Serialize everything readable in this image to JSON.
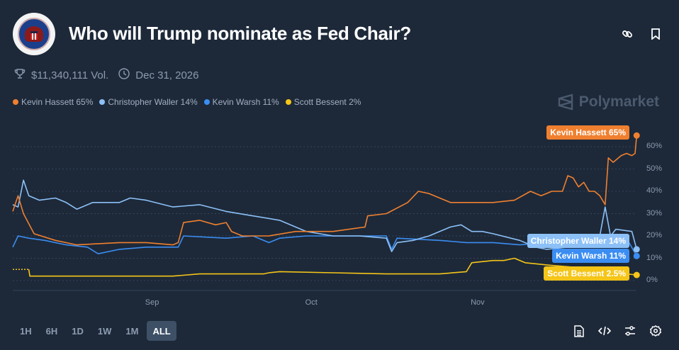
{
  "header": {
    "title": "Who will Trump nominate as Fed Chair?",
    "volume": "$11,340,111 Vol.",
    "end_date": "Dec 31, 2026"
  },
  "brand": "Polymarket",
  "legend": [
    {
      "label": "Kevin Hassett 65%",
      "color": "#f0802f"
    },
    {
      "label": "Christopher Waller 14%",
      "color": "#8cc0f7"
    },
    {
      "label": "Kevin Warsh 11%",
      "color": "#3b8df2"
    },
    {
      "label": "Scott Bessent 2%",
      "color": "#f5c518"
    }
  ],
  "time_ranges": [
    "1H",
    "6H",
    "1D",
    "1W",
    "1M",
    "ALL"
  ],
  "active_range": "ALL",
  "chart_data": {
    "type": "line",
    "x_unit": "days since start (~Aug 5)",
    "xticks": [
      {
        "label": "Sep",
        "day": 26
      },
      {
        "label": "Oct",
        "day": 56
      },
      {
        "label": "Nov",
        "day": 87
      }
    ],
    "yticks": [
      "0%",
      "10%",
      "20%",
      "30%",
      "40%",
      "50%",
      "60%"
    ],
    "ylim": [
      0,
      65
    ],
    "series": [
      {
        "name": "Kevin Hassett",
        "end_label": "Kevin Hassett 65%",
        "color": "#f0802f",
        "points": [
          [
            0,
            31
          ],
          [
            1,
            38
          ],
          [
            2,
            30
          ],
          [
            4,
            21
          ],
          [
            8,
            18
          ],
          [
            12,
            16
          ],
          [
            20,
            17
          ],
          [
            25,
            17
          ],
          [
            30,
            16
          ],
          [
            31,
            17
          ],
          [
            32,
            26
          ],
          [
            35,
            27
          ],
          [
            38,
            25
          ],
          [
            40,
            26
          ],
          [
            41,
            22
          ],
          [
            43,
            20
          ],
          [
            48,
            20
          ],
          [
            53,
            22
          ],
          [
            60,
            22
          ],
          [
            66,
            24
          ],
          [
            66.5,
            29
          ],
          [
            70,
            30
          ],
          [
            74,
            35
          ],
          [
            76,
            40
          ],
          [
            78,
            39
          ],
          [
            82,
            35
          ],
          [
            86,
            35
          ],
          [
            90,
            35
          ],
          [
            94,
            36
          ],
          [
            97,
            40
          ],
          [
            99,
            38
          ],
          [
            101,
            40
          ],
          [
            103,
            40
          ],
          [
            104,
            47
          ],
          [
            105,
            46
          ],
          [
            106,
            42
          ],
          [
            107,
            44
          ],
          [
            108,
            40
          ],
          [
            109,
            40
          ],
          [
            110,
            38
          ],
          [
            111,
            34
          ],
          [
            111.6,
            55
          ],
          [
            112.5,
            53
          ],
          [
            114,
            56
          ],
          [
            115,
            57
          ],
          [
            116,
            56
          ],
          [
            116.6,
            57
          ],
          [
            116.9,
            65
          ]
        ]
      },
      {
        "name": "Christopher Waller",
        "end_label": "Christopher Waller 14%",
        "color": "#8cc0f7",
        "points": [
          [
            0,
            34
          ],
          [
            1,
            33
          ],
          [
            2,
            45
          ],
          [
            3,
            38
          ],
          [
            5,
            36
          ],
          [
            8,
            37
          ],
          [
            10,
            35
          ],
          [
            12,
            32
          ],
          [
            15,
            35
          ],
          [
            20,
            35
          ],
          [
            22,
            37
          ],
          [
            25,
            36
          ],
          [
            30,
            33
          ],
          [
            35,
            34
          ],
          [
            40,
            31
          ],
          [
            45,
            29
          ],
          [
            50,
            27
          ],
          [
            55,
            22
          ],
          [
            60,
            20
          ],
          [
            65,
            20
          ],
          [
            70,
            19
          ],
          [
            71,
            13
          ],
          [
            72,
            17
          ],
          [
            75,
            18
          ],
          [
            78,
            20
          ],
          [
            82,
            24
          ],
          [
            84,
            25
          ],
          [
            86,
            22
          ],
          [
            88,
            22
          ],
          [
            90,
            21
          ],
          [
            95,
            18
          ],
          [
            98,
            15
          ],
          [
            100,
            14
          ],
          [
            104,
            15
          ],
          [
            108,
            16
          ],
          [
            110,
            20
          ],
          [
            111,
            33
          ],
          [
            112,
            20
          ],
          [
            113,
            23
          ],
          [
            116,
            22
          ],
          [
            116.9,
            14
          ]
        ]
      },
      {
        "name": "Kevin Warsh",
        "end_label": "Kevin Warsh 11%",
        "color": "#3b8df2",
        "points": [
          [
            0,
            15
          ],
          [
            1,
            20
          ],
          [
            3,
            19
          ],
          [
            6,
            18
          ],
          [
            10,
            16
          ],
          [
            14,
            15
          ],
          [
            16,
            12
          ],
          [
            20,
            14
          ],
          [
            25,
            15
          ],
          [
            31,
            15
          ],
          [
            32,
            20
          ],
          [
            40,
            19
          ],
          [
            45,
            20
          ],
          [
            48,
            17
          ],
          [
            50,
            19
          ],
          [
            55,
            20
          ],
          [
            60,
            20
          ],
          [
            65,
            20
          ],
          [
            70,
            20
          ],
          [
            71,
            14
          ],
          [
            72,
            19
          ],
          [
            80,
            18
          ],
          [
            85,
            17
          ],
          [
            90,
            17
          ],
          [
            95,
            16
          ],
          [
            100,
            17
          ],
          [
            105,
            19
          ],
          [
            108,
            19
          ],
          [
            110,
            18
          ],
          [
            112,
            19
          ],
          [
            115,
            19
          ],
          [
            116.9,
            11
          ]
        ]
      },
      {
        "name": "Scott Bessent",
        "end_label": "Scott Bessent 2.5%",
        "color": "#f5c518",
        "points": [
          [
            0,
            5
          ],
          [
            3,
            5
          ],
          [
            3.2,
            2
          ],
          [
            15,
            2
          ],
          [
            30,
            2
          ],
          [
            35,
            3
          ],
          [
            45,
            3
          ],
          [
            47,
            3
          ],
          [
            48,
            3.5
          ],
          [
            50,
            4
          ],
          [
            60,
            3.5
          ],
          [
            70,
            3
          ],
          [
            80,
            3
          ],
          [
            85,
            4
          ],
          [
            86,
            8
          ],
          [
            90,
            9
          ],
          [
            92,
            9
          ],
          [
            94,
            10
          ],
          [
            96,
            8
          ],
          [
            100,
            7
          ],
          [
            105,
            6
          ],
          [
            110,
            5
          ],
          [
            112,
            4
          ],
          [
            115,
            3
          ],
          [
            116.9,
            2.5
          ]
        ]
      }
    ]
  }
}
